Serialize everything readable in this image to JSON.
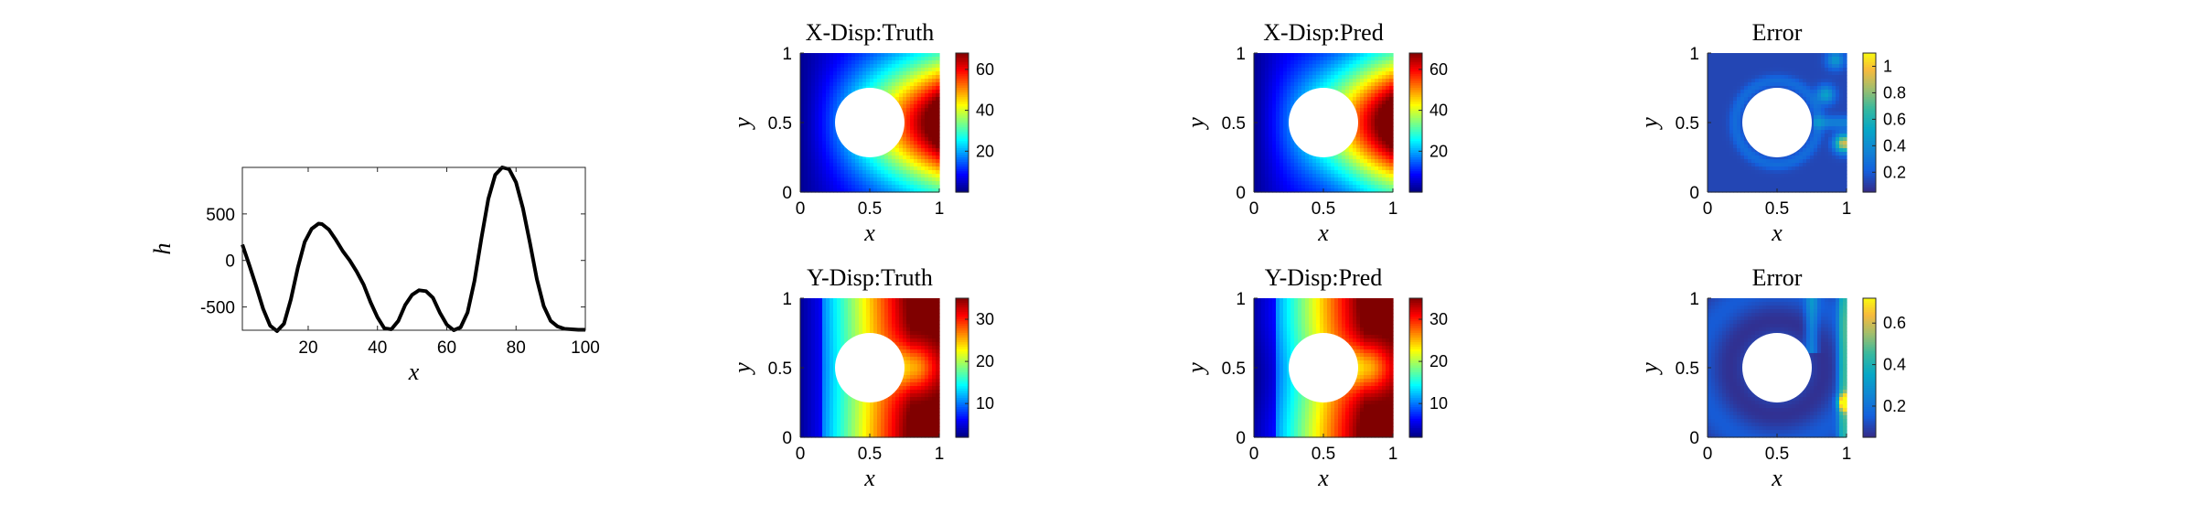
{
  "chart_data": [
    {
      "type": "line",
      "title": "",
      "xlabel": "x",
      "ylabel": "h",
      "xlim": [
        1,
        100
      ],
      "ylim": [
        -750,
        1000
      ],
      "xticks": [
        20,
        40,
        60,
        80,
        100
      ],
      "xtick_labels": [
        "20",
        "40",
        "60",
        "80",
        "100"
      ],
      "yticks": [
        500,
        0,
        -500
      ],
      "ytick_labels": [
        "500",
        "0",
        "-500"
      ],
      "line_color": "#000000",
      "x": [
        1,
        3,
        5,
        7,
        9,
        11,
        13,
        15,
        17,
        19,
        21,
        23,
        24,
        26,
        28,
        30,
        32,
        34,
        36,
        38,
        40,
        42,
        44,
        46,
        48,
        50,
        52,
        54,
        56,
        58,
        60,
        62,
        64,
        66,
        68,
        70,
        72,
        74,
        76,
        78,
        80,
        82,
        84,
        86,
        88,
        90,
        92,
        94,
        96,
        98,
        100
      ],
      "y": [
        170,
        -50,
        -280,
        -520,
        -700,
        -760,
        -680,
        -420,
        -80,
        200,
        340,
        395,
        390,
        330,
        220,
        100,
        0,
        -120,
        -260,
        -450,
        -610,
        -730,
        -740,
        -650,
        -480,
        -370,
        -320,
        -330,
        -400,
        -560,
        -690,
        -750,
        -720,
        -560,
        -220,
        240,
        660,
        920,
        1000,
        980,
        840,
        560,
        190,
        -200,
        -490,
        -650,
        -710,
        -735,
        -740,
        -745,
        -745
      ]
    },
    {
      "type": "heatmap",
      "title": "X-Disp:Truth",
      "xlabel": "x",
      "ylabel": "y",
      "xlim": [
        0,
        1
      ],
      "ylim": [
        0,
        1
      ],
      "xticks": [
        0,
        0.5,
        1
      ],
      "xtick_labels": [
        "0",
        "0.5",
        "1"
      ],
      "yticks": [
        0,
        0.5,
        1
      ],
      "ytick_labels": [
        "0",
        "0.5",
        "1"
      ],
      "colormap": "jet",
      "clim": [
        0,
        68
      ],
      "colorbar_ticks": [
        20,
        40,
        60
      ],
      "colorbar_labels": [
        "20",
        "40",
        "60"
      ],
      "hole": {
        "center": [
          0.5,
          0.5
        ],
        "radius": 0.25
      }
    },
    {
      "type": "heatmap",
      "title": "X-Disp:Pred",
      "xlabel": "x",
      "ylabel": "y",
      "xlim": [
        0,
        1
      ],
      "ylim": [
        0,
        1
      ],
      "xticks": [
        0,
        0.5,
        1
      ],
      "xtick_labels": [
        "0",
        "0.5",
        "1"
      ],
      "yticks": [
        0,
        0.5,
        1
      ],
      "ytick_labels": [
        "0",
        "0.5",
        "1"
      ],
      "colormap": "jet",
      "clim": [
        0,
        68
      ],
      "colorbar_ticks": [
        20,
        40,
        60
      ],
      "colorbar_labels": [
        "20",
        "40",
        "60"
      ],
      "hole": {
        "center": [
          0.5,
          0.5
        ],
        "radius": 0.25
      }
    },
    {
      "type": "heatmap",
      "title": "Error",
      "xlabel": "x",
      "ylabel": "y",
      "xlim": [
        0,
        1
      ],
      "ylim": [
        0,
        1
      ],
      "xticks": [
        0,
        0.5,
        1
      ],
      "xtick_labels": [
        "0",
        "0.5",
        "1"
      ],
      "yticks": [
        0,
        0.5,
        1
      ],
      "ytick_labels": [
        "0",
        "0.5",
        "1"
      ],
      "colormap": "parula",
      "clim": [
        0.05,
        1.1
      ],
      "colorbar_ticks": [
        0.2,
        0.4,
        0.6,
        0.8,
        1
      ],
      "colorbar_labels": [
        "0.2",
        "0.4",
        "0.6",
        "0.8",
        "1"
      ],
      "hole": {
        "center": [
          0.5,
          0.5
        ],
        "radius": 0.25
      }
    },
    {
      "type": "heatmap",
      "title": "Y-Disp:Truth",
      "xlabel": "x",
      "ylabel": "y",
      "xlim": [
        0,
        1
      ],
      "ylim": [
        0,
        1
      ],
      "xticks": [
        0,
        0.5,
        1
      ],
      "xtick_labels": [
        "0",
        "0.5",
        "1"
      ],
      "yticks": [
        0,
        0.5,
        1
      ],
      "ytick_labels": [
        "0",
        "0.5",
        "1"
      ],
      "colormap": "jet",
      "clim": [
        2,
        35
      ],
      "colorbar_ticks": [
        10,
        20,
        30
      ],
      "colorbar_labels": [
        "10",
        "20",
        "30"
      ],
      "hole": {
        "center": [
          0.5,
          0.5
        ],
        "radius": 0.25
      }
    },
    {
      "type": "heatmap",
      "title": "Y-Disp:Pred",
      "xlabel": "x",
      "ylabel": "y",
      "xlim": [
        0,
        1
      ],
      "ylim": [
        0,
        1
      ],
      "xticks": [
        0,
        0.5,
        1
      ],
      "xtick_labels": [
        "0",
        "0.5",
        "1"
      ],
      "yticks": [
        0,
        0.5,
        1
      ],
      "ytick_labels": [
        "0",
        "0.5",
        "1"
      ],
      "colormap": "jet",
      "clim": [
        2,
        35
      ],
      "colorbar_ticks": [
        10,
        20,
        30
      ],
      "colorbar_labels": [
        "10",
        "20",
        "30"
      ],
      "hole": {
        "center": [
          0.5,
          0.5
        ],
        "radius": 0.25
      }
    },
    {
      "type": "heatmap",
      "title": "Error",
      "xlabel": "x",
      "ylabel": "y",
      "xlim": [
        0,
        1
      ],
      "ylim": [
        0,
        1
      ],
      "xticks": [
        0,
        0.5,
        1
      ],
      "xtick_labels": [
        "0",
        "0.5",
        "1"
      ],
      "yticks": [
        0,
        0.5,
        1
      ],
      "ytick_labels": [
        "0",
        "0.5",
        "1"
      ],
      "colormap": "parula",
      "clim": [
        0.05,
        0.72
      ],
      "colorbar_ticks": [
        0.2,
        0.4,
        0.6
      ],
      "colorbar_labels": [
        "0.2",
        "0.4",
        "0.6"
      ],
      "hole": {
        "center": [
          0.5,
          0.5
        ],
        "radius": 0.25
      }
    }
  ]
}
